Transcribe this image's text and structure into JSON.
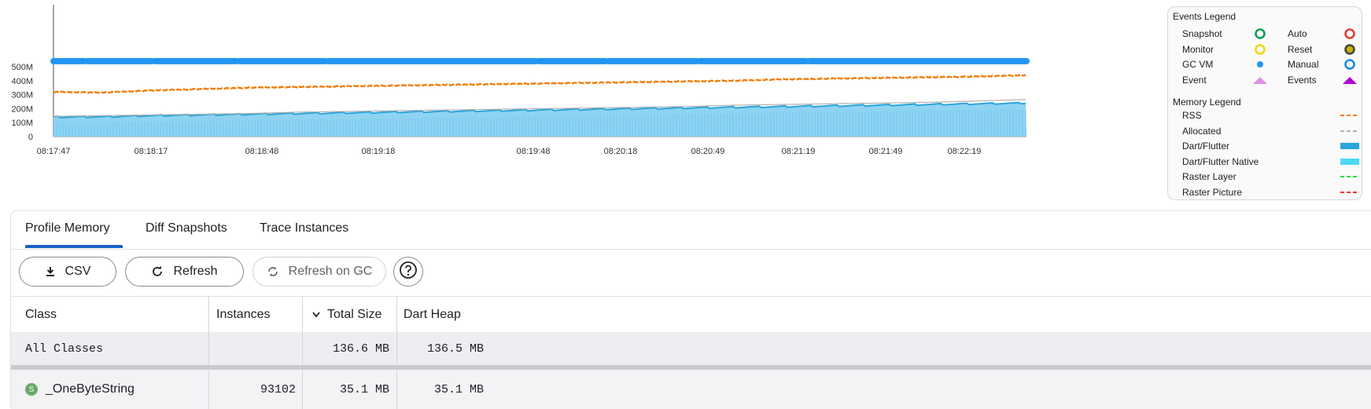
{
  "chart_data": {
    "type": "area",
    "title": "",
    "xlabel": "",
    "ylabel": "",
    "ylim": [
      0,
      500
    ],
    "y_unit": "M",
    "y_ticks": [
      "0",
      "100M",
      "200M",
      "300M",
      "400M",
      "500M"
    ],
    "x_ticks": [
      "08:17:47",
      "08:18:17",
      "08:18:48",
      "08:19:18",
      "08:19:48",
      "08:20:18",
      "08:20:49",
      "08:21:19",
      "08:21:49",
      "08:22:19"
    ],
    "series": [
      {
        "name": "RSS",
        "color": "#f57c00",
        "values": [
          320,
          315,
          330,
          340,
          350,
          355,
          360,
          365,
          370,
          375,
          380,
          385,
          390,
          395,
          400,
          410,
          415,
          420,
          425,
          430,
          440
        ]
      },
      {
        "name": "Allocated",
        "color": "#b0b0b0",
        "values": [
          145,
          150,
          155,
          160,
          165,
          175,
          180,
          185,
          190,
          195,
          200,
          205,
          210,
          215,
          225,
          230,
          235,
          240,
          245,
          255,
          265
        ]
      },
      {
        "name": "Dart/Flutter",
        "color": "#2aa4dc",
        "values": [
          140,
          142,
          150,
          155,
          160,
          165,
          170,
          175,
          180,
          185,
          190,
          195,
          200,
          205,
          210,
          215,
          220,
          225,
          230,
          235,
          240
        ]
      },
      {
        "name": "GC VM",
        "color": "#2196f3",
        "values": [
          540,
          540,
          540,
          540,
          540,
          540,
          540,
          540,
          540,
          540,
          540,
          540,
          540,
          540,
          540,
          540,
          540,
          540,
          540,
          540,
          540
        ]
      }
    ]
  },
  "legend": {
    "events_title": "Events Legend",
    "events": [
      {
        "label": "Snapshot",
        "symbol": "ring",
        "color": "#0f9d58"
      },
      {
        "label": "Auto",
        "symbol": "ring",
        "color": "#e53935"
      },
      {
        "label": "Monitor",
        "symbol": "ring",
        "color": "#f4d40b"
      },
      {
        "label": "Reset",
        "symbol": "ring-filled",
        "color": "#444444"
      },
      {
        "label": "GC VM",
        "symbol": "dot",
        "color": "#2196f3"
      },
      {
        "label": "Manual",
        "symbol": "ring",
        "color": "#1e88e5"
      },
      {
        "label": "Event",
        "symbol": "triangle",
        "color": "#e08ee8"
      },
      {
        "label": "Events",
        "symbol": "triangle",
        "color": "#b400d4"
      }
    ],
    "memory_title": "Memory Legend",
    "memory": [
      {
        "label": "RSS",
        "symbol": "dash",
        "color": "#f57c00"
      },
      {
        "label": "Allocated",
        "symbol": "dash",
        "color": "#b0b0b0"
      },
      {
        "label": "Dart/Flutter",
        "symbol": "bar",
        "color": "#2aa4dc"
      },
      {
        "label": "Dart/Flutter Native",
        "symbol": "bar",
        "color": "#4dd9f5"
      },
      {
        "label": "Raster Layer",
        "symbol": "dash",
        "color": "#22dd44"
      },
      {
        "label": "Raster Picture",
        "symbol": "dash",
        "color": "#ee3333"
      }
    ]
  },
  "tabs": [
    {
      "label": "Profile Memory",
      "active": true
    },
    {
      "label": "Diff Snapshots",
      "active": false
    },
    {
      "label": "Trace Instances",
      "active": false
    }
  ],
  "toolbar": {
    "csv_label": "CSV",
    "refresh_label": "Refresh",
    "refresh_gc_label": "Refresh on GC"
  },
  "table": {
    "columns": [
      "Class",
      "Instances",
      "Total Size",
      "Dart Heap"
    ],
    "sort_column": "Total Size",
    "summary": {
      "class": "All Classes",
      "instances": "",
      "total_size": "136.6 MB",
      "dart_heap": "136.5 MB"
    },
    "rows": [
      {
        "badge": "S",
        "class": "_OneByteString",
        "instances": "93102",
        "total_size": "35.1 MB",
        "dart_heap": "35.1 MB"
      }
    ]
  }
}
